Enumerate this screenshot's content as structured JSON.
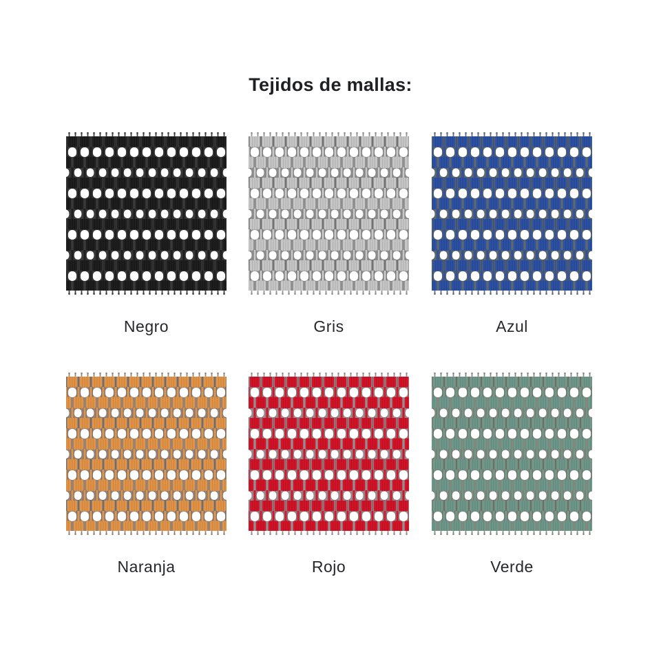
{
  "title": "Tejidos de mallas:",
  "page": {
    "background_color": "#ffffff",
    "text_color": "#26272b",
    "title_color": "#1f2024"
  },
  "swatches": [
    {
      "id": "negro",
      "label": "Negro",
      "block_color": "#1f1f1f",
      "block_dark_color": "#0c0c0c",
      "warp_color": "#3a3a3a"
    },
    {
      "id": "gris",
      "label": "Gris",
      "block_color": "#c7c7c7",
      "block_dark_color": "#9e9e9e",
      "warp_color": "#8f8f8f"
    },
    {
      "id": "azul",
      "label": "Azul",
      "block_color": "#2d52a3",
      "block_dark_color": "#1d3a7c",
      "warp_color": "#5d6872"
    },
    {
      "id": "naranja",
      "label": "Naranja",
      "block_color": "#e0944a",
      "block_dark_color": "#c1762c",
      "warp_color": "#93847a"
    },
    {
      "id": "rojo",
      "label": "Rojo",
      "block_color": "#d41327",
      "block_dark_color": "#9e0f1e",
      "warp_color": "#9b8a90"
    },
    {
      "id": "verde",
      "label": "Verde",
      "block_color": "#6f978a",
      "block_dark_color": "#547c6f",
      "warp_color": "#828a80"
    }
  ]
}
